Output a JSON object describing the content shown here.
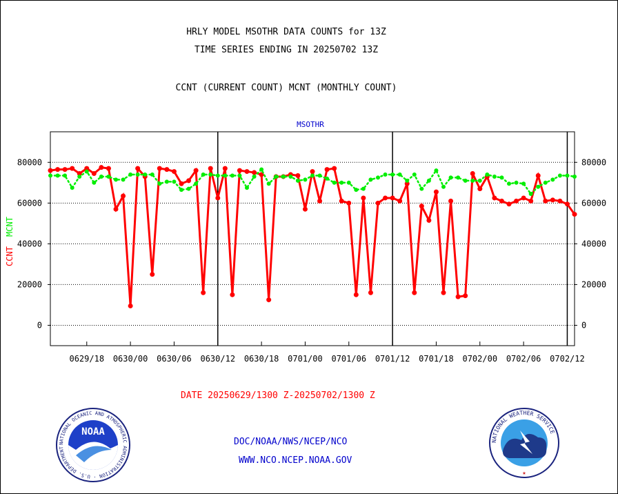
{
  "header": {
    "title1": "HRLY MODEL MSOTHR DATA COUNTS for 13Z",
    "title2": "TIME SERIES ENDING IN 20250702 13Z",
    "subtitle": "CCNT (CURRENT COUNT) MCNT (MONTHLY COUNT)"
  },
  "footer": {
    "date_range": "DATE 20250629/1300 Z-20250702/1300 Z",
    "org": "DOC/NOAA/NWS/NCEP/NCO",
    "url": "WWW.NCO.NCEP.NOAA.GOV",
    "noaa_logo_text": "NOAA",
    "noaa_ring_text": "NATIONAL OCEANIC AND ATMOSPHERIC ADMINISTRATION · U.S. DEPARTMENT OF COMMERCE",
    "nws_ring_text": "NATIONAL WEATHER SERVICE"
  },
  "colors": {
    "ccnt": "#ff0000",
    "mcnt": "#00ee00",
    "label_blue": "#0000cc",
    "date_red": "#ff0000"
  },
  "chart_data": {
    "type": "line",
    "title": "MSOTHR",
    "ylabel_left": "CCNT",
    "ylabel_right": "MCNT",
    "ylim": [
      -10000,
      95000
    ],
    "yticks": [
      0,
      20000,
      40000,
      60000,
      80000
    ],
    "ytick_labels": [
      "0",
      "20000",
      "40000",
      "60000",
      "80000"
    ],
    "x_start_hour": 0,
    "x_end_hour": 72,
    "x_ticks_hours": [
      5,
      11,
      17,
      23,
      29,
      35,
      41,
      47,
      53,
      59,
      65,
      71
    ],
    "x_tick_labels": [
      "0629/18",
      "0630/00",
      "0630/06",
      "0630/12",
      "0630/18",
      "0701/00",
      "0701/06",
      "0701/12",
      "0701/18",
      "0702/00",
      "0702/06",
      "0702/12"
    ],
    "day_boundaries_hours": [
      23,
      47,
      71
    ],
    "grid": true,
    "series": [
      {
        "name": "CCNT",
        "color": "#ff0000",
        "values": [
          76000,
          76500,
          76500,
          77000,
          74500,
          77000,
          74500,
          77500,
          77000,
          57000,
          63500,
          9500,
          77000,
          73000,
          25000,
          77000,
          76500,
          75500,
          69500,
          71000,
          76000,
          16000,
          77000,
          62500,
          77000,
          15000,
          76000,
          75500,
          75000,
          74000,
          12500,
          73000,
          73000,
          74000,
          73500,
          57000,
          75500,
          61000,
          76500,
          77000,
          61000,
          60000,
          15000,
          62500,
          16000,
          60000,
          62500,
          62500,
          61000,
          69500,
          16000,
          58500,
          51500,
          65500,
          16000,
          61000,
          14000,
          14500,
          74500,
          67000,
          73000,
          62500,
          61000,
          59500,
          61000,
          62500,
          61000,
          73500,
          61000,
          61500,
          61000,
          59500,
          54500
        ]
      },
      {
        "name": "MCNT",
        "color": "#00ee00",
        "values": [
          73500,
          73500,
          73500,
          67500,
          73000,
          75500,
          70000,
          73000,
          73000,
          71500,
          71500,
          74000,
          74000,
          74000,
          74000,
          69500,
          70500,
          70500,
          66500,
          67000,
          69500,
          74000,
          74000,
          73500,
          73500,
          73500,
          73500,
          67500,
          73000,
          76500,
          69500,
          73000,
          73000,
          73000,
          71000,
          71500,
          73500,
          73500,
          72000,
          70000,
          70000,
          70000,
          66500,
          67000,
          71500,
          72500,
          74000,
          74000,
          74000,
          71000,
          74000,
          67000,
          71000,
          76000,
          68000,
          72500,
          72500,
          71000,
          71000,
          71000,
          74000,
          73000,
          72500,
          69500,
          70000,
          69500,
          64500,
          68000,
          70000,
          71500,
          73500,
          73500,
          73000
        ]
      }
    ]
  }
}
